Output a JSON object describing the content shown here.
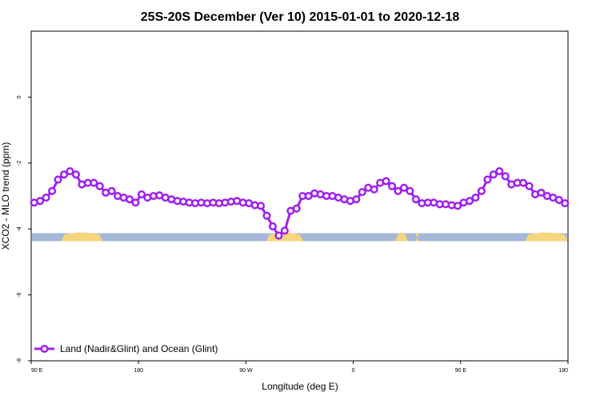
{
  "chart_data": {
    "type": "line",
    "title": "25S-20S December (Ver 10)   2015-01-01 to 2020-12-18",
    "xlabel": "Longitude (deg E)",
    "ylabel": "XCO2 - MLO trend (ppm)",
    "xlim": [
      90,
      540
    ],
    "ylim": [
      -8,
      2
    ],
    "x_ticks": [
      {
        "value": 90,
        "label": "90 E"
      },
      {
        "value": 180,
        "label": "180"
      },
      {
        "value": 270,
        "label": "90 W"
      },
      {
        "value": 360,
        "label": "0"
      },
      {
        "value": 450,
        "label": "90 E"
      },
      {
        "value": 540,
        "label": "180"
      }
    ],
    "y_ticks": [
      {
        "value": 0,
        "label": "0"
      },
      {
        "value": -2,
        "label": "-2"
      },
      {
        "value": -4,
        "label": "-4"
      },
      {
        "value": -6,
        "label": "-6"
      },
      {
        "value": -8,
        "label": "-8"
      }
    ],
    "grid": false,
    "legend_position": "bottom-left",
    "series": [
      {
        "name": "Land (Nadir&Glint) and Ocean (Glint)",
        "color": "#a020f0",
        "marker": "open-circle",
        "x": [
          92.5,
          97.5,
          102.5,
          107.5,
          112.5,
          117.5,
          122.5,
          127.5,
          132.5,
          137.5,
          142.5,
          147.5,
          152.5,
          157.5,
          162.5,
          167.5,
          172.5,
          177.5,
          182.5,
          187.5,
          192.5,
          197.5,
          202.5,
          207.5,
          212.5,
          217.5,
          222.5,
          227.5,
          232.5,
          237.5,
          242.5,
          247.5,
          252.5,
          257.5,
          262.5,
          267.5,
          272.5,
          277.5,
          282.5,
          287.5,
          292.5,
          297.5,
          302.5,
          307.5,
          312.5,
          317.5,
          322.5,
          327.5,
          332.5,
          337.5,
          342.5,
          347.5,
          352.5,
          357.5,
          362.5,
          367.5,
          372.5,
          377.5,
          382.5,
          387.5,
          392.5,
          397.5,
          402.5,
          407.5,
          412.5,
          417.5,
          422.5,
          427.5,
          432.5,
          437.5,
          442.5,
          447.5,
          452.5,
          457.5,
          462.5,
          467.5,
          472.5,
          477.5,
          482.5,
          487.5,
          492.5,
          497.5,
          502.5,
          507.5,
          512.5,
          517.5,
          522.5,
          527.5,
          532.5,
          537.5
        ],
        "y": [
          -3.2,
          -3.15,
          -3.05,
          -2.85,
          -2.5,
          -2.35,
          -2.25,
          -2.35,
          -2.65,
          -2.6,
          -2.6,
          -2.7,
          -2.9,
          -2.85,
          -3.0,
          -3.05,
          -3.1,
          -3.2,
          -2.95,
          -3.05,
          -3.0,
          -2.98,
          -3.05,
          -3.1,
          -3.15,
          -3.17,
          -3.2,
          -3.22,
          -3.2,
          -3.22,
          -3.2,
          -3.22,
          -3.2,
          -3.17,
          -3.15,
          -3.2,
          -3.22,
          -3.28,
          -3.3,
          -3.6,
          -3.92,
          -4.2,
          -4.05,
          -3.45,
          -3.38,
          -3.0,
          -3.0,
          -2.92,
          -2.95,
          -3.0,
          -3.0,
          -3.05,
          -3.1,
          -3.15,
          -3.1,
          -2.88,
          -2.75,
          -2.8,
          -2.6,
          -2.55,
          -2.7,
          -2.85,
          -2.75,
          -2.85,
          -3.1,
          -3.22,
          -3.2,
          -3.2,
          -3.25,
          -3.25,
          -3.28,
          -3.3,
          -3.2,
          -3.15,
          -3.05,
          -2.85,
          -2.5,
          -2.35,
          -2.25,
          -2.4,
          -2.65,
          -2.6,
          -2.6,
          -2.7,
          -2.95,
          -2.9,
          -3.0,
          -3.05,
          -3.12,
          -3.22
        ]
      }
    ],
    "surface_bar": {
      "y": -4.25,
      "ocean_color": "#a5b8d8",
      "land_color": "#f7d57d",
      "land_segments": [
        [
          115,
          150
        ],
        [
          287,
          318
        ],
        [
          395,
          406
        ],
        [
          412,
          415
        ],
        [
          504,
          540
        ]
      ]
    }
  }
}
